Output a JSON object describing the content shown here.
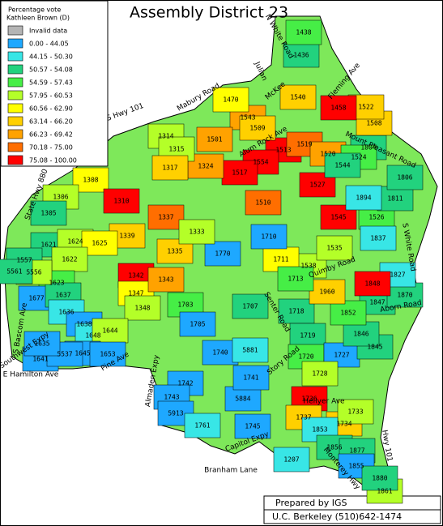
{
  "title": "Assembly District 23",
  "legend": {
    "heading": [
      "Percentage vote",
      "Kathleen Brown (D)"
    ],
    "entries": [
      {
        "label": "Invalid data",
        "color": "#b4b4b4"
      },
      {
        "label": "0.00 - 44.05",
        "color": "#1ea8ff"
      },
      {
        "label": "44.15 - 50.30",
        "color": "#38e6e6"
      },
      {
        "label": "50.57 - 54.08",
        "color": "#22d27e"
      },
      {
        "label": "54.59 - 57.43",
        "color": "#46ee46"
      },
      {
        "label": "57.95 - 60.53",
        "color": "#b4ff28"
      },
      {
        "label": "60.56 - 62.90",
        "color": "#ffff00"
      },
      {
        "label": "63.14 - 66.20",
        "color": "#ffd000"
      },
      {
        "label": "66.23 - 69.42",
        "color": "#ffa200"
      },
      {
        "label": "70.18 - 75.00",
        "color": "#ff6e00"
      },
      {
        "label": "75.08 - 100.00",
        "color": "#ff0000"
      }
    ]
  },
  "streets": [
    "U S Hwy 101",
    "Mabury Road",
    "McKee",
    "Alum Rock Ave",
    "Mount Pleasant Road",
    "State Hwy 880",
    "S Bascom Ave",
    "E Hamilton Ave",
    "Pine Ave",
    "Branham Lane",
    "Monterey Hwy",
    "Hwy 101",
    "Aborn Road",
    "Quimby Road",
    "S White Road",
    "Capitol Expy",
    "Senter Road",
    "Story Road",
    "Fleming Ave",
    "N White Road",
    "Hellyer Ave",
    "Southwest Expy",
    "Almaden Expy",
    "Julian"
  ],
  "precincts": [
    {
      "label": "1513",
      "color": "#ff0000"
    },
    {
      "label": "1554",
      "color": "#ff0000"
    },
    {
      "label": "1517",
      "color": "#ff0000"
    },
    {
      "label": "1527",
      "color": "#ff0000"
    },
    {
      "label": "1545",
      "color": "#ff0000"
    },
    {
      "label": "1510",
      "color": "#ff6e00"
    },
    {
      "label": "1519",
      "color": "#ff6e00"
    },
    {
      "label": "1520",
      "color": "#ffa200"
    },
    {
      "label": "1540",
      "color": "#ffd000"
    },
    {
      "label": "1543",
      "color": "#ffa200"
    },
    {
      "label": "1509",
      "color": "#ffd000"
    },
    {
      "label": "1470",
      "color": "#ffff00"
    },
    {
      "label": "1501",
      "color": "#ffa200"
    },
    {
      "label": "1324",
      "color": "#ffa200"
    },
    {
      "label": "1314",
      "color": "#b4ff28"
    },
    {
      "label": "1315",
      "color": "#b4ff28"
    },
    {
      "label": "1317",
      "color": "#ffd000"
    },
    {
      "label": "1308",
      "color": "#ffff00"
    },
    {
      "label": "1306",
      "color": "#b4ff28"
    },
    {
      "label": "1305",
      "color": "#22d27e"
    },
    {
      "label": "1310",
      "color": "#ff0000"
    },
    {
      "label": "1339",
      "color": "#ffd000"
    },
    {
      "label": "1337",
      "color": "#ff6e00"
    },
    {
      "label": "1342",
      "color": "#ff0000"
    },
    {
      "label": "1347",
      "color": "#ffff00"
    },
    {
      "label": "1348",
      "color": "#b4ff28"
    },
    {
      "label": "1703",
      "color": "#46ee46"
    },
    {
      "label": "1707",
      "color": "#22d27e"
    },
    {
      "label": "1705",
      "color": "#1ea8ff"
    },
    {
      "label": "1740",
      "color": "#1ea8ff"
    },
    {
      "label": "1742",
      "color": "#1ea8ff"
    },
    {
      "label": "1743",
      "color": "#1ea8ff"
    },
    {
      "label": "5884",
      "color": "#1ea8ff"
    },
    {
      "label": "5913",
      "color": "#1ea8ff"
    },
    {
      "label": "1761",
      "color": "#38e6e6"
    },
    {
      "label": "1745",
      "color": "#1ea8ff"
    },
    {
      "label": "1741",
      "color": "#1ea8ff"
    },
    {
      "label": "5881",
      "color": "#38e6e6"
    },
    {
      "label": "1718",
      "color": "#22d27e"
    },
    {
      "label": "1719",
      "color": "#22d27e"
    },
    {
      "label": "1720",
      "color": "#46ee46"
    },
    {
      "label": "1727",
      "color": "#1ea8ff"
    },
    {
      "label": "1728",
      "color": "#b4ff28"
    },
    {
      "label": "1736",
      "color": "#ff0000"
    },
    {
      "label": "1737",
      "color": "#ffd000"
    },
    {
      "label": "1734",
      "color": "#ffd000"
    },
    {
      "label": "1733",
      "color": "#b4ff28"
    },
    {
      "label": "1853",
      "color": "#38e6e6"
    },
    {
      "label": "1856",
      "color": "#22d27e"
    },
    {
      "label": "1877",
      "color": "#22d27e"
    },
    {
      "label": "1855",
      "color": "#1ea8ff"
    },
    {
      "label": "1861",
      "color": "#b4ff28"
    },
    {
      "label": "1880",
      "color": "#22d27e"
    },
    {
      "label": "1207",
      "color": "#38e6e6"
    },
    {
      "label": "1845",
      "color": "#22d27e"
    },
    {
      "label": "1846",
      "color": "#22d27e"
    },
    {
      "label": "1847",
      "color": "#22d27e"
    },
    {
      "label": "1852",
      "color": "#46ee46"
    },
    {
      "label": "1870",
      "color": "#22d27e"
    },
    {
      "label": "1827",
      "color": "#38e6e6"
    },
    {
      "label": "1848",
      "color": "#ff0000"
    },
    {
      "label": "1960",
      "color": "#ffd000"
    },
    {
      "label": "1538",
      "color": "#b4ff28"
    },
    {
      "label": "1535",
      "color": "#b4ff28"
    },
    {
      "label": "1526",
      "color": "#46ee46"
    },
    {
      "label": "1837",
      "color": "#38e6e6"
    },
    {
      "label": "1811",
      "color": "#22d27e"
    },
    {
      "label": "1806",
      "color": "#22d27e"
    },
    {
      "label": "1804",
      "color": "#22d27e"
    },
    {
      "label": "1524",
      "color": "#46ee46"
    },
    {
      "label": "1544",
      "color": "#22d27e"
    },
    {
      "label": "1508",
      "color": "#ffd000"
    },
    {
      "label": "1522",
      "color": "#ffd000"
    },
    {
      "label": "1458",
      "color": "#ff0000"
    },
    {
      "label": "1436",
      "color": "#22d27e"
    },
    {
      "label": "1438",
      "color": "#46ee46"
    },
    {
      "label": "1621",
      "color": "#22d27e"
    },
    {
      "label": "1624",
      "color": "#b4ff28"
    },
    {
      "label": "1625",
      "color": "#ffff00"
    },
    {
      "label": "1622",
      "color": "#b4ff28"
    },
    {
      "label": "1623",
      "color": "#46ee46"
    },
    {
      "label": "1677",
      "color": "#1ea8ff"
    },
    {
      "label": "1637",
      "color": "#22d27e"
    },
    {
      "label": "1636",
      "color": "#38e6e6"
    },
    {
      "label": "1638",
      "color": "#1ea8ff"
    },
    {
      "label": "1648",
      "color": "#38e6e6"
    },
    {
      "label": "1644",
      "color": "#b4ff28"
    },
    {
      "label": "1645",
      "color": "#1ea8ff"
    },
    {
      "label": "1641",
      "color": "#1ea8ff"
    },
    {
      "label": "5537",
      "color": "#1ea8ff"
    },
    {
      "label": "1635",
      "color": "#1ea8ff"
    },
    {
      "label": "1653",
      "color": "#1ea8ff"
    },
    {
      "label": "1557",
      "color": "#22d27e"
    },
    {
      "label": "5556",
      "color": "#b4ff28"
    },
    {
      "label": "5561",
      "color": "#22d27e"
    },
    {
      "label": "1711",
      "color": "#ffff00"
    },
    {
      "label": "1713",
      "color": "#46ee46"
    },
    {
      "label": "1710",
      "color": "#1ea8ff"
    },
    {
      "label": "1770",
      "color": "#1ea8ff"
    },
    {
      "label": "1335",
      "color": "#ffd000"
    },
    {
      "label": "1343",
      "color": "#ffa200"
    },
    {
      "label": "1333",
      "color": "#b4ff28"
    },
    {
      "label": "1894",
      "color": "#38e6e6"
    }
  ],
  "credits": [
    "Prepared by IGS",
    "U.C. Berkeley (510)642-1474"
  ]
}
